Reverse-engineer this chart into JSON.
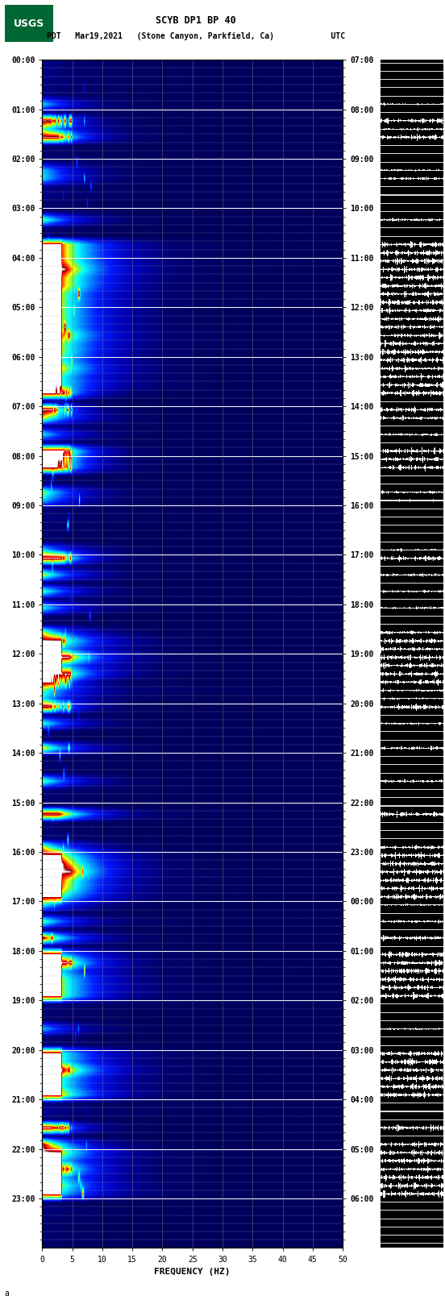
{
  "title_line1": "SCYB DP1 BP 40",
  "title_line2": "PDT   Mar19,2021   (Stone Canyon, Parkfield, Ca)            UTC",
  "xlabel": "FREQUENCY (HZ)",
  "freq_ticks": [
    0,
    5,
    10,
    15,
    20,
    25,
    30,
    35,
    40,
    45,
    50
  ],
  "freq_min": 0,
  "freq_max": 50,
  "left_times": [
    "00:00",
    "01:00",
    "02:00",
    "03:00",
    "04:00",
    "05:00",
    "06:00",
    "07:00",
    "08:00",
    "09:00",
    "10:00",
    "11:00",
    "12:00",
    "13:00",
    "14:00",
    "15:00",
    "16:00",
    "17:00",
    "18:00",
    "19:00",
    "20:00",
    "21:00",
    "22:00",
    "23:00"
  ],
  "right_times": [
    "07:00",
    "08:00",
    "09:00",
    "10:00",
    "11:00",
    "12:00",
    "13:00",
    "14:00",
    "15:00",
    "16:00",
    "17:00",
    "18:00",
    "19:00",
    "20:00",
    "21:00",
    "22:00",
    "23:00",
    "00:00",
    "01:00",
    "02:00",
    "03:00",
    "04:00",
    "05:00",
    "06:00"
  ],
  "n_hours": 24,
  "strips_per_hour": 6,
  "background_color": "#ffffff",
  "spectrogram_bg": "#000080",
  "grid_color": "#808080",
  "usgs_green": "#006633",
  "fig_width": 5.52,
  "fig_height": 16.13,
  "dpi": 100
}
